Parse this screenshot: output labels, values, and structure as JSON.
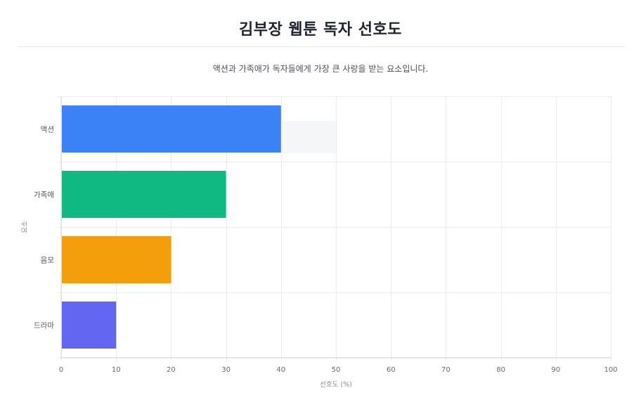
{
  "header": {
    "title": "김부장 웹툰 독자 선호도",
    "subtitle": "액션과 가족애가 독자들에게 가장 큰 사랑을 받는 요소입니다."
  },
  "chart_data": {
    "type": "bar",
    "orientation": "horizontal",
    "categories": [
      "액션",
      "가족애",
      "음모",
      "드라마"
    ],
    "values": [
      40,
      30,
      20,
      10
    ],
    "colors": [
      "#3b82f6",
      "#10b981",
      "#f59e0b",
      "#6366f1"
    ],
    "title": "김부장 웹툰 독자 선호도",
    "subtitle": "액션과 가족애가 독자들에게 가장 큰 사랑을 받는 요소입니다.",
    "xlabel": "선호도 (%)",
    "ylabel": "요소",
    "xlim": [
      0,
      100
    ],
    "xticks": [
      0,
      10,
      20,
      30,
      40,
      50,
      60,
      70,
      80,
      90,
      100
    ],
    "grid": true,
    "legend": "none"
  }
}
